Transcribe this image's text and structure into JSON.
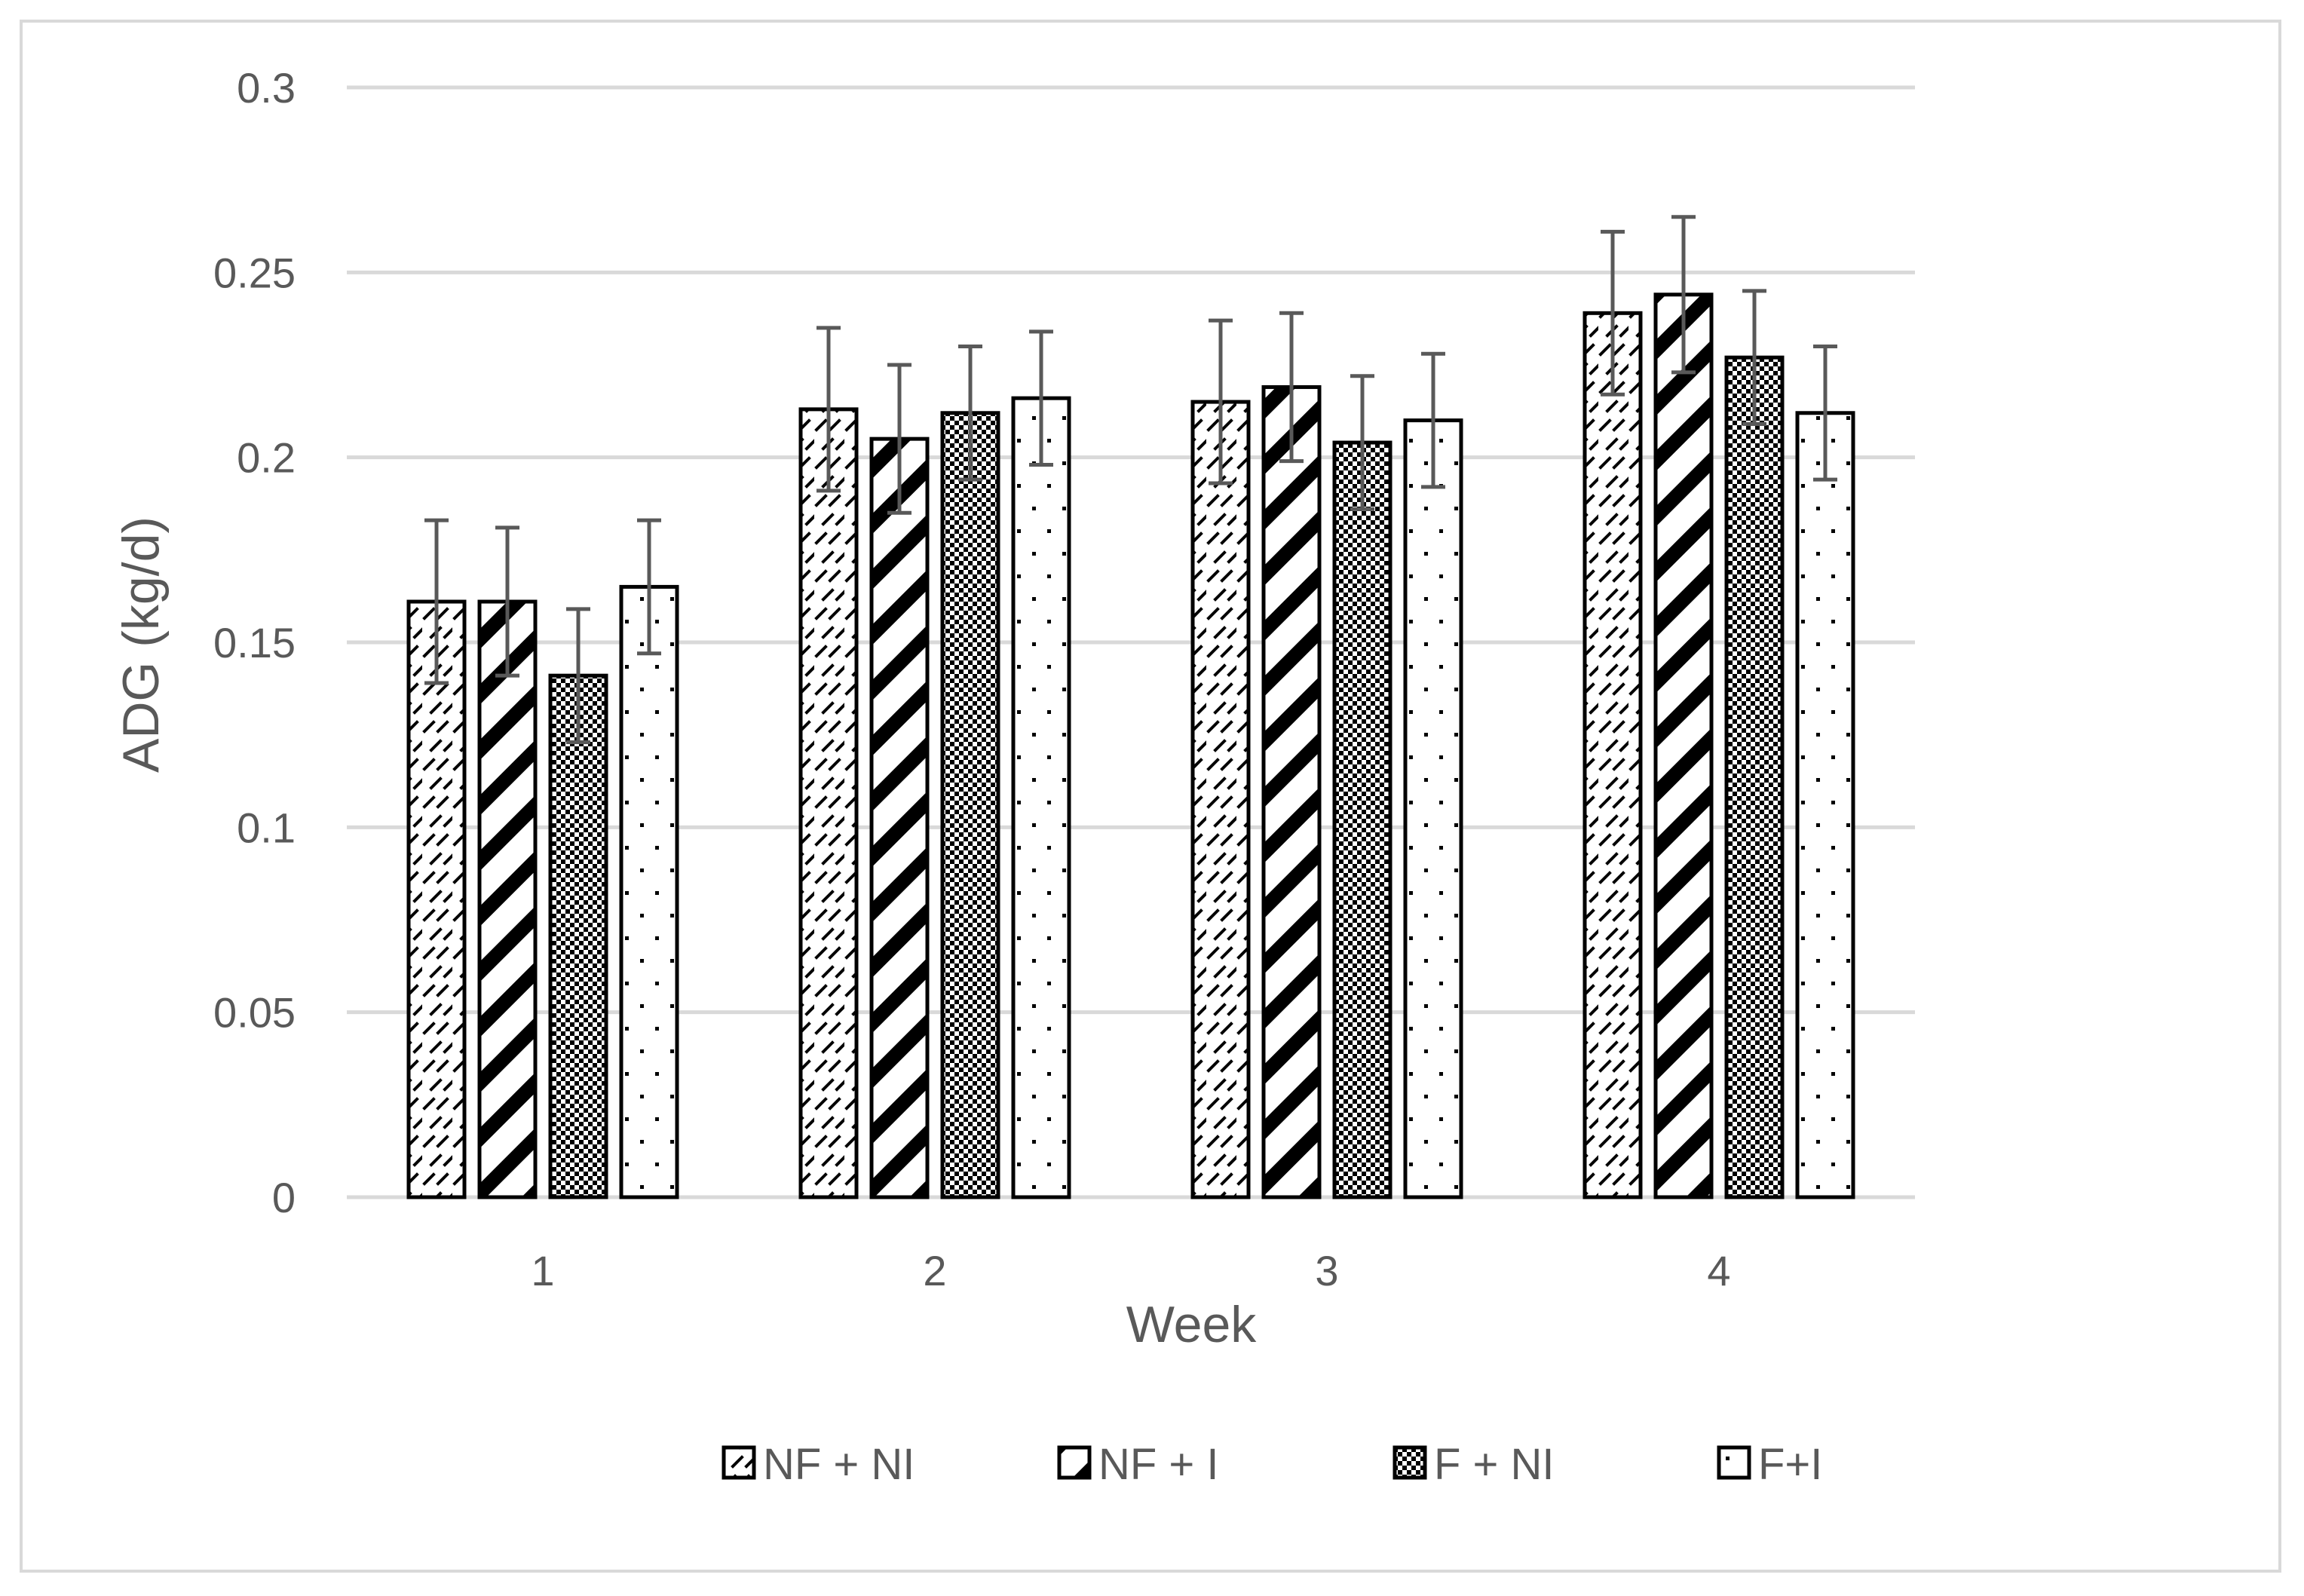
{
  "chart_data": {
    "type": "bar",
    "title": "",
    "xlabel": "Week",
    "ylabel": "ADG (kg/d)",
    "categories": [
      "1",
      "2",
      "3",
      "4"
    ],
    "ylim": [
      0,
      0.3
    ],
    "yticks": [
      "0",
      "0.05",
      "0.1",
      "0.15",
      "0.2",
      "0.25",
      "0.3"
    ],
    "grid": true,
    "legend_position": "bottom",
    "series": [
      {
        "name": "NF + NI",
        "pattern": "dashes",
        "values": [
          0.161,
          0.213,
          0.215,
          0.239
        ],
        "errors": [
          0.022,
          0.022,
          0.022,
          0.022
        ]
      },
      {
        "name": "NF + I",
        "pattern": "diagonal-stripes",
        "values": [
          0.161,
          0.205,
          0.219,
          0.244
        ],
        "errors": [
          0.02,
          0.02,
          0.02,
          0.021
        ]
      },
      {
        "name": "F + NI",
        "pattern": "checker",
        "values": [
          0.141,
          0.212,
          0.204,
          0.227
        ],
        "errors": [
          0.018,
          0.018,
          0.018,
          0.018
        ]
      },
      {
        "name": "F+I",
        "pattern": "dots",
        "values": [
          0.165,
          0.216,
          0.21,
          0.212
        ],
        "errors": [
          0.018,
          0.018,
          0.018,
          0.018
        ]
      }
    ],
    "colors": {
      "grid": "#d9d9d9",
      "text": "#595959",
      "bar_stroke": "#000000",
      "error_bar": "#595959"
    }
  }
}
